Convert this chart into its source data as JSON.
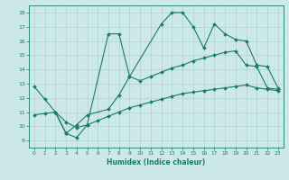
{
  "title": "",
  "xlabel": "Humidex (Indice chaleur)",
  "bg_color": "#cce8e8",
  "line_color": "#1a7a6e",
  "grid_color": "#aacccc",
  "xlim": [
    -0.5,
    23.5
  ],
  "ylim": [
    8.5,
    18.5
  ],
  "xticks": [
    0,
    1,
    2,
    3,
    4,
    5,
    6,
    7,
    8,
    9,
    10,
    11,
    12,
    13,
    14,
    15,
    16,
    17,
    18,
    19,
    20,
    21,
    22,
    23
  ],
  "yticks": [
    9,
    10,
    11,
    12,
    13,
    14,
    15,
    16,
    17,
    18
  ],
  "curve1_x": [
    0,
    1,
    2,
    3,
    4,
    5,
    7,
    8,
    9,
    12,
    13,
    14,
    15,
    16,
    17,
    18,
    19,
    20,
    21,
    22,
    23
  ],
  "curve1_y": [
    12.8,
    11.9,
    11.0,
    9.5,
    9.2,
    10.1,
    16.5,
    16.5,
    13.5,
    17.2,
    18.0,
    18.0,
    17.0,
    15.5,
    17.2,
    16.5,
    16.1,
    16.0,
    14.3,
    14.2,
    12.7
  ],
  "curve2_x": [
    2,
    3,
    4,
    5,
    7,
    8,
    9,
    10,
    11,
    12,
    13,
    14,
    15,
    16,
    17,
    18,
    19,
    20,
    21,
    22,
    23
  ],
  "curve2_y": [
    11.0,
    9.5,
    10.1,
    10.8,
    11.2,
    12.2,
    13.5,
    13.2,
    13.5,
    13.8,
    14.1,
    14.3,
    14.6,
    14.8,
    15.0,
    15.2,
    15.3,
    14.3,
    14.2,
    12.7,
    12.6
  ],
  "curve3_x": [
    0,
    1,
    2,
    3,
    4,
    5,
    6,
    7,
    8,
    9,
    10,
    11,
    12,
    13,
    14,
    15,
    16,
    17,
    18,
    19,
    20,
    21,
    22,
    23
  ],
  "curve3_y": [
    10.8,
    10.9,
    11.0,
    10.3,
    9.9,
    10.1,
    10.4,
    10.7,
    11.0,
    11.3,
    11.5,
    11.7,
    11.9,
    12.1,
    12.3,
    12.4,
    12.5,
    12.6,
    12.7,
    12.8,
    12.9,
    12.7,
    12.6,
    12.5
  ],
  "markersize": 2.0,
  "linewidth": 0.8
}
